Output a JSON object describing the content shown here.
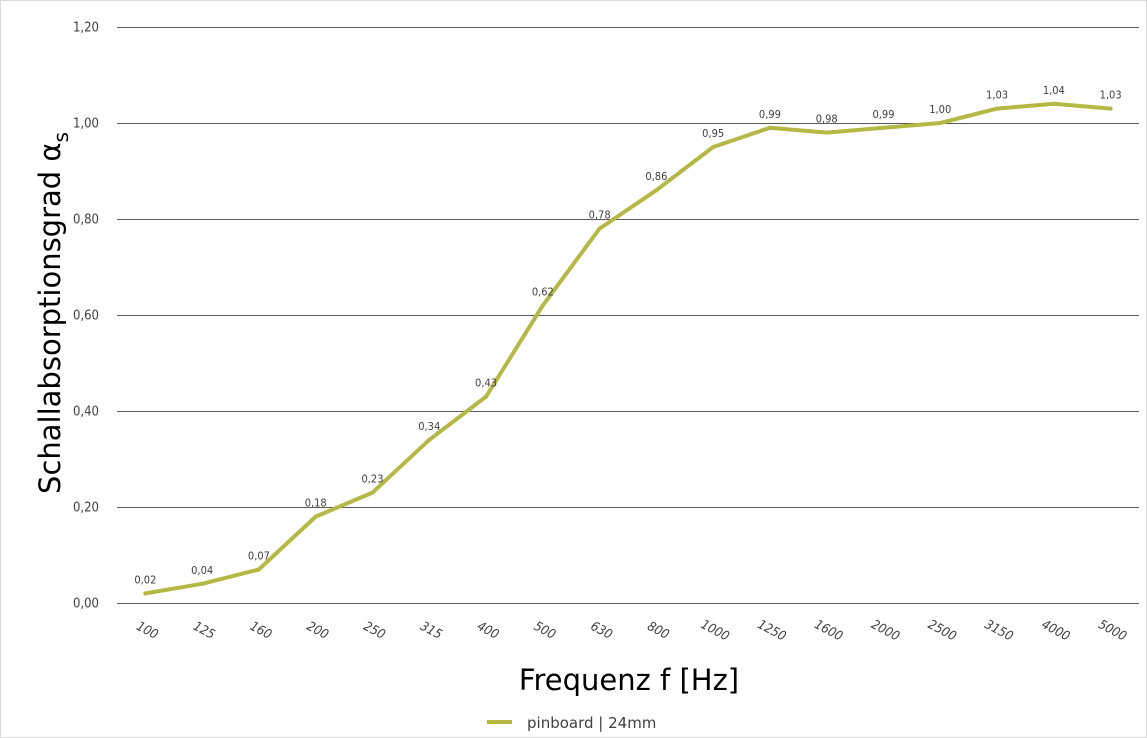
{
  "chart_data": {
    "type": "line",
    "categories": [
      "100",
      "125",
      "160",
      "200",
      "250",
      "315",
      "400",
      "500",
      "630",
      "800",
      "1000",
      "1250",
      "1600",
      "2000",
      "2500",
      "3150",
      "4000",
      "5000"
    ],
    "series": [
      {
        "name": "pinboard | 24mm",
        "values": [
          0.02,
          0.04,
          0.07,
          0.18,
          0.23,
          0.34,
          0.43,
          0.62,
          0.78,
          0.86,
          0.95,
          0.99,
          0.98,
          0.99,
          1.0,
          1.03,
          1.04,
          1.03
        ],
        "data_labels": [
          "0,02",
          "0,04",
          "0,07",
          "0,18",
          "0,23",
          "0,34",
          "0,43",
          "0,62",
          "0,78",
          "0,86",
          "0,95",
          "0,99",
          "0,98",
          "0,99",
          "1,00",
          "1,03",
          "1,04",
          "1,03"
        ],
        "color": "#b5b844"
      }
    ],
    "y_ticks": [
      0,
      0.2,
      0.4,
      0.6,
      0.8,
      1.0,
      1.2
    ],
    "y_tick_labels": [
      "0,00",
      "0,20",
      "0,40",
      "0,60",
      "0,80",
      "1,00",
      "1,20"
    ],
    "ylim": [
      0,
      1.2
    ],
    "xlabel": "Frequenz f [Hz]",
    "ylabel": "Schallabsorptionsgrad α",
    "ylabel_subscript": "s",
    "grid": true,
    "legend_position": "bottom-center",
    "gridline_color": "#595959"
  }
}
